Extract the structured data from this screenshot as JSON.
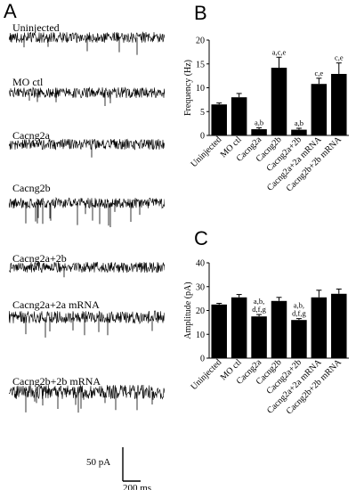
{
  "panels": {
    "a": "A",
    "b": "B",
    "c": "C"
  },
  "traces": [
    {
      "label": "Uninjected",
      "amp": 6,
      "events": 5,
      "eventAmp": 14
    },
    {
      "label": "MO ctl",
      "amp": 6,
      "events": 5,
      "eventAmp": 14
    },
    {
      "label": "Cacng2a",
      "amp": 6,
      "events": 1,
      "eventAmp": 10
    },
    {
      "label": "Cacng2b",
      "amp": 6,
      "events": 16,
      "eventAmp": 18
    },
    {
      "label": "Cacng2a+2b",
      "amp": 6,
      "events": 1,
      "eventAmp": 10
    },
    {
      "label": "Cacng2a+2a mRNA",
      "amp": 7,
      "events": 8,
      "eventAmp": 16
    },
    {
      "label": "Cacng2b+2b mRNA",
      "amp": 8,
      "events": 14,
      "eventAmp": 16
    }
  ],
  "scalebar": {
    "vertical_label": "50 pA",
    "horizontal_label": "200 ms"
  },
  "chart_data": [
    {
      "type": "bar",
      "panel": "B",
      "title": "",
      "xlabel": "",
      "ylabel": "Frequency (Hz)",
      "ylim": [
        0,
        20
      ],
      "yticks": [
        0,
        5,
        10,
        15,
        20
      ],
      "categories": [
        "Uninjected",
        "MO ctl",
        "Cacng2a",
        "Cacng2b",
        "Cacng2a+2b",
        "Cacng2a+2a mRNA",
        "Cacng2b+2b mRNA"
      ],
      "values": [
        6.5,
        8.0,
        1.3,
        14.2,
        1.2,
        10.8,
        12.9
      ],
      "errors": [
        0.3,
        0.8,
        0.3,
        2.2,
        0.3,
        1.2,
        2.3
      ],
      "annotations": [
        "",
        "",
        "a,b",
        "a,c,e",
        "a,b",
        "c,e",
        "c,e"
      ],
      "bar_color": "#000000"
    },
    {
      "type": "bar",
      "panel": "C",
      "title": "",
      "xlabel": "",
      "ylabel": "Amplitude (pA)",
      "ylim": [
        0,
        40
      ],
      "yticks": [
        0,
        10,
        20,
        30,
        40
      ],
      "categories": [
        "Uninjected",
        "MO ctl",
        "Cacng2a",
        "Cacng2b",
        "Cacng2a+2b",
        "Cacng2a+2a mRNA",
        "Cacng2b+2b mRNA"
      ],
      "values": [
        22.5,
        25.5,
        17.5,
        24.0,
        16.0,
        25.5,
        27.0
      ],
      "errors": [
        0.5,
        1.2,
        0.8,
        1.5,
        0.6,
        3.0,
        2.0
      ],
      "annotations": [
        "",
        "",
        "a,b,\nd,f,g",
        "",
        "a,b,\nd,f,g",
        "",
        ""
      ],
      "bar_color": "#000000"
    }
  ]
}
